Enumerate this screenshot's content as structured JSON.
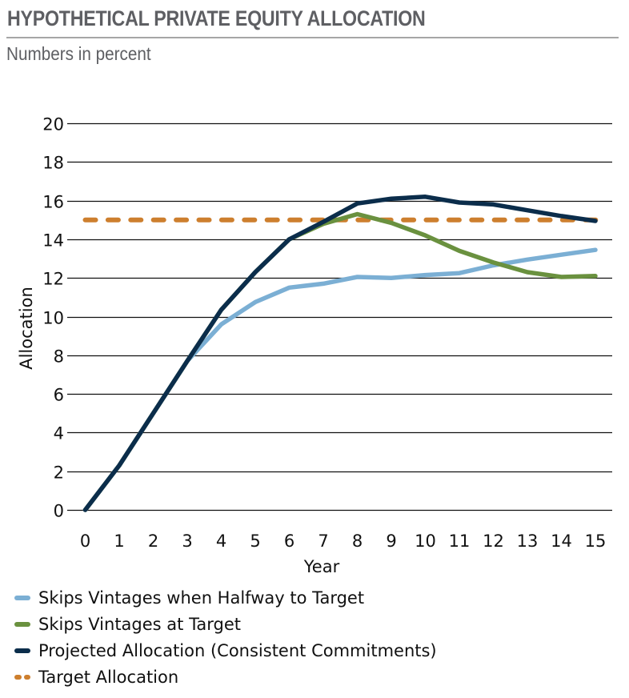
{
  "header": {
    "title": "HYPOTHETICAL PRIVATE EQUITY ALLOCATION",
    "subtitle": "Numbers in percent"
  },
  "chart_data": {
    "type": "line",
    "title": "HYPOTHETICAL PRIVATE EQUITY ALLOCATION",
    "subtitle": "Numbers in percent",
    "xlabel": "Year",
    "ylabel": "Allocation",
    "x": [
      0,
      1,
      2,
      3,
      4,
      5,
      6,
      7,
      8,
      9,
      10,
      11,
      12,
      13,
      14,
      15
    ],
    "xlim": [
      0,
      15
    ],
    "ylim": [
      0,
      20
    ],
    "yticks": [
      0,
      2,
      4,
      6,
      8,
      10,
      12,
      14,
      16,
      18,
      20
    ],
    "xticks": [
      0,
      1,
      2,
      3,
      4,
      5,
      6,
      7,
      8,
      9,
      10,
      11,
      12,
      13,
      14,
      15
    ],
    "grid": "horizontal",
    "legend_position": "bottom",
    "series": [
      {
        "name": "Skips Vintages when Halfway to Target",
        "color": "#7bafd4",
        "style": "solid",
        "values": [
          0,
          2.3,
          5.0,
          7.7,
          9.6,
          10.75,
          11.5,
          11.7,
          12.05,
          12.0,
          12.15,
          12.25,
          12.65,
          12.95,
          13.2,
          13.45
        ]
      },
      {
        "name": "Skips Vintages at Target",
        "color": "#6a913f",
        "style": "solid",
        "values": [
          0,
          2.3,
          5.0,
          7.7,
          10.35,
          12.3,
          14.0,
          14.8,
          15.3,
          14.85,
          14.2,
          13.4,
          12.8,
          12.3,
          12.05,
          12.1
        ]
      },
      {
        "name": "Projected Allocation (Consistent Commitments)",
        "color": "#0b2d4b",
        "style": "solid",
        "values": [
          0,
          2.3,
          5.0,
          7.7,
          10.35,
          12.3,
          14.0,
          14.9,
          15.85,
          16.1,
          16.2,
          15.9,
          15.8,
          15.5,
          15.2,
          14.95
        ]
      },
      {
        "name": "Target Allocation",
        "color": "#cd7f2e",
        "style": "dashed",
        "values": [
          15,
          15,
          15,
          15,
          15,
          15,
          15,
          15,
          15,
          15,
          15,
          15,
          15,
          15,
          15,
          15
        ]
      }
    ]
  },
  "colors": {
    "title": "#5e5f63",
    "separator": "#a6a6a6",
    "gridline": "#111111"
  }
}
